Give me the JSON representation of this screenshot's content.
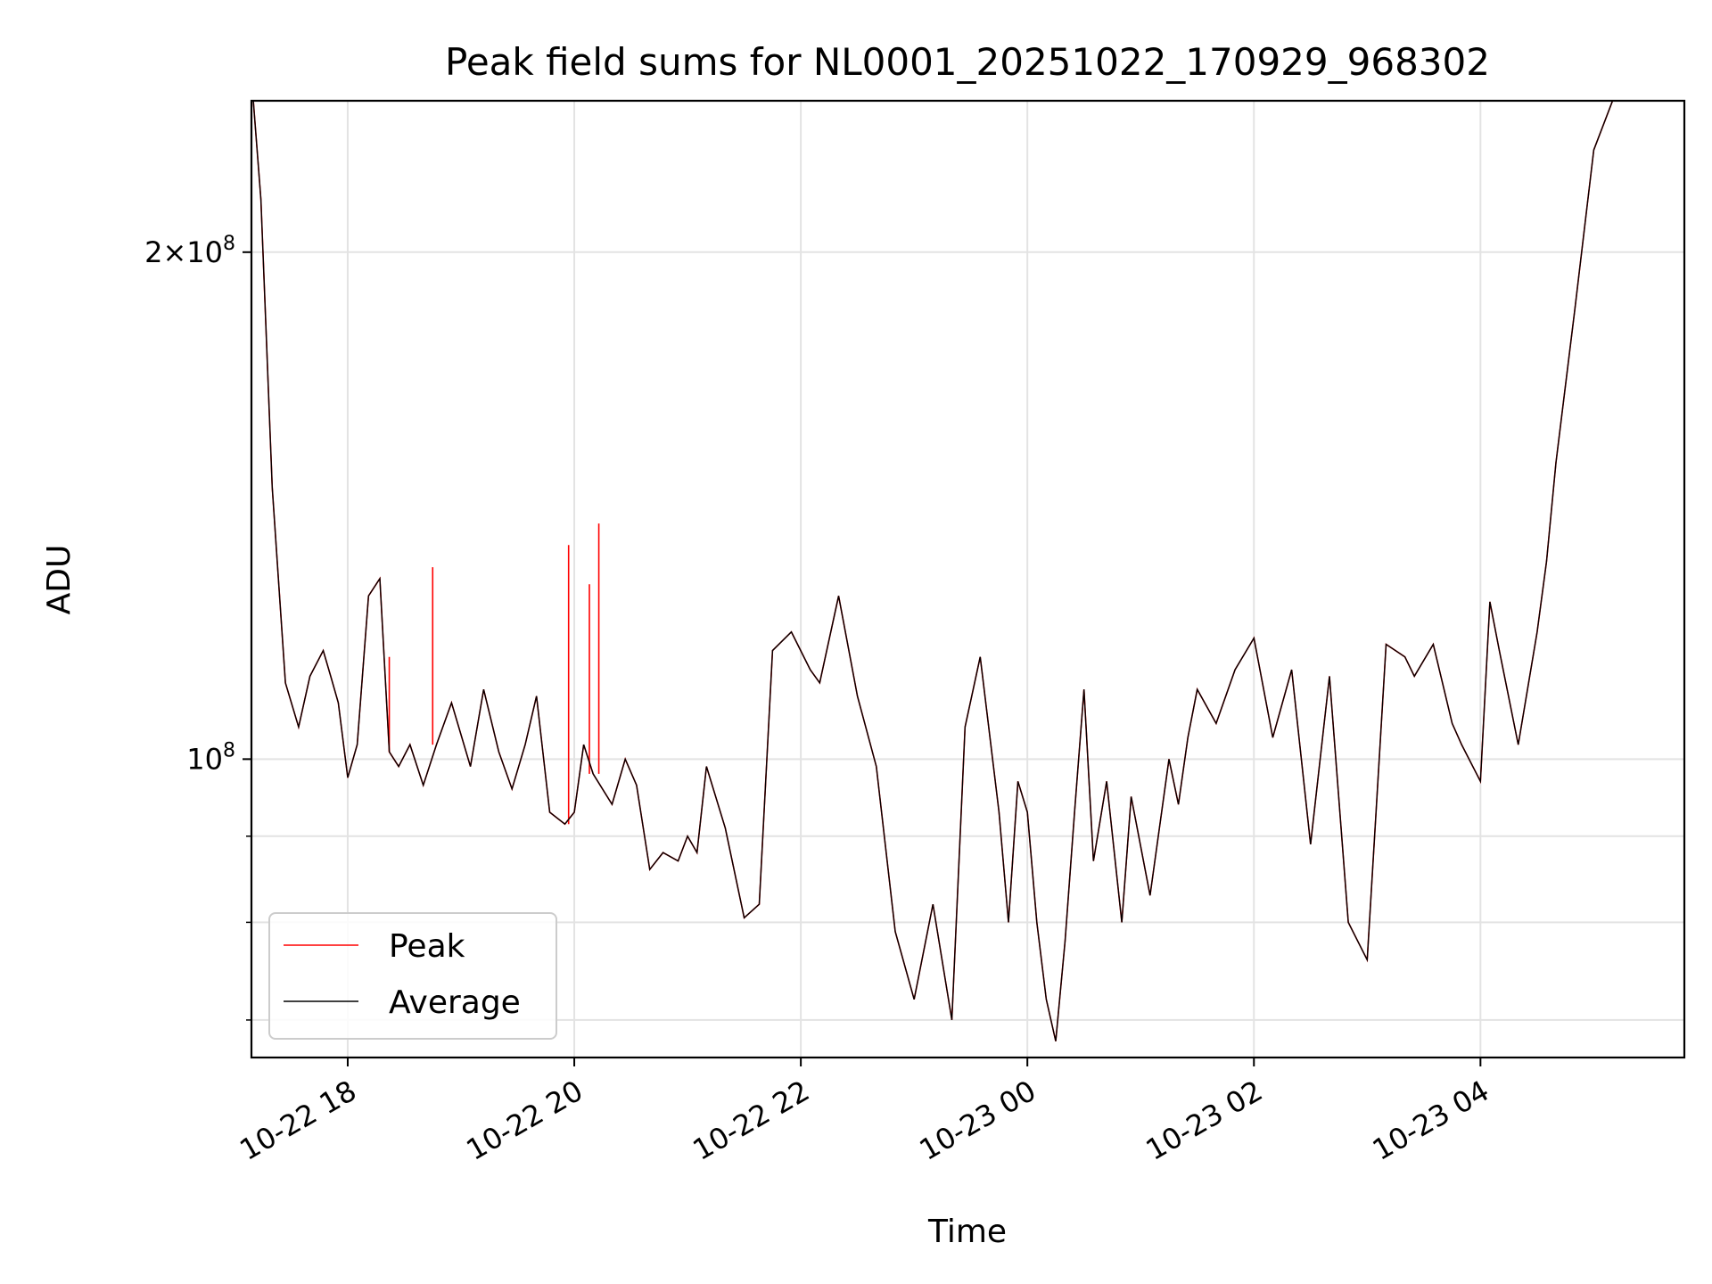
{
  "chart_data": {
    "type": "line",
    "title": "Peak field sums for NL0001_20251022_170929_968302",
    "xlabel": "Time",
    "ylabel": "ADU",
    "x_range": [
      "2025-10-22 17:09",
      "2025-10-23 05:48"
    ],
    "x_ticks": [
      "10-22 18",
      "10-22 20",
      "10-22 22",
      "10-23 00",
      "10-23 02",
      "10-23 04"
    ],
    "y_scale": "log",
    "ylim": [
      66500000,
      246000000
    ],
    "y_major_ticks": [
      {
        "value": 100000000,
        "label": "10^8"
      },
      {
        "value": 200000000,
        "label": "2×10^8"
      }
    ],
    "y_minor_ticks": [
      70000000,
      80000000,
      90000000
    ],
    "grid": true,
    "legend_position": "lower-left",
    "colors": {
      "peak": "#ff0000",
      "average": "#000000"
    },
    "series": [
      {
        "name": "Peak",
        "color": "#ff0000"
      },
      {
        "name": "Average",
        "color": "#000000"
      }
    ],
    "x": [
      "17:09",
      "17:10",
      "17:14",
      "17:20",
      "17:27",
      "17:34",
      "17:40",
      "17:47",
      "17:51",
      "17:55",
      "18:00",
      "18:05",
      "18:11",
      "18:17",
      "18:22",
      "18:27",
      "18:33",
      "18:40",
      "18:47",
      "18:55",
      "19:05",
      "19:12",
      "19:20",
      "19:27",
      "19:34",
      "19:40",
      "19:47",
      "19:55",
      "20:00",
      "20:05",
      "20:10",
      "20:20",
      "20:27",
      "20:33",
      "20:40",
      "20:47",
      "20:55",
      "21:00",
      "21:05",
      "21:10",
      "21:20",
      "21:30",
      "21:38",
      "21:45",
      "21:55",
      "22:05",
      "22:10",
      "22:20",
      "22:30",
      "22:40",
      "22:50",
      "23:00",
      "23:10",
      "23:20",
      "23:27",
      "23:35",
      "23:45",
      "23:50",
      "23:55",
      "00:00",
      "00:05",
      "00:10",
      "00:15",
      "00:20",
      "00:25",
      "00:30",
      "00:35",
      "00:42",
      "00:50",
      "00:55",
      "01:05",
      "01:15",
      "01:20",
      "01:25",
      "01:30",
      "01:40",
      "01:50",
      "02:00",
      "02:10",
      "02:20",
      "02:30",
      "02:40",
      "02:50",
      "03:00",
      "03:10",
      "03:20",
      "03:25",
      "03:35",
      "03:45",
      "03:50",
      "04:00",
      "04:05",
      "04:10",
      "04:20",
      "04:30",
      "04:35",
      "04:40",
      "04:50",
      "05:00",
      "05:10",
      "05:15",
      "05:20",
      "05:25",
      "05:30",
      "05:40",
      "05:48"
    ],
    "values_average": [
      246000000,
      246000000,
      215000000,
      145000000,
      111000000,
      104500000,
      112000000,
      116000000,
      112000000,
      108000000,
      97500000,
      102000000,
      125000000,
      128000000,
      101000000,
      99000000,
      102000000,
      96500000,
      102000000,
      108000000,
      99000000,
      110000000,
      101000000,
      96000000,
      102000000,
      109000000,
      93000000,
      91500000,
      93000000,
      102000000,
      98000000,
      94000000,
      100000000,
      96500000,
      86000000,
      88000000,
      87000000,
      90000000,
      88000000,
      99000000,
      91000000,
      80500000,
      82000000,
      116000000,
      119000000,
      113000000,
      111000000,
      125000000,
      109000000,
      99000000,
      79000000,
      72000000,
      82000000,
      70000000,
      104500000,
      115000000,
      93000000,
      80000000,
      97000000,
      93000000,
      80000000,
      72000000,
      68000000,
      78000000,
      93000000,
      110000000,
      87000000,
      97000000,
      80000000,
      95000000,
      83000000,
      100000000,
      94000000,
      103000000,
      110000000,
      105000000,
      113000000,
      118000000,
      103000000,
      113000000,
      89000000,
      112000000,
      80000000,
      76000000,
      117000000,
      115000000,
      112000000,
      117000000,
      105000000,
      102000000,
      97000000,
      124000000,
      116000000,
      102000000,
      119000000,
      131000000,
      150000000,
      185000000,
      230000000,
      246000000,
      246000000,
      246000000,
      246000000,
      246000000,
      246000000,
      246000000
    ],
    "values_peak": [
      246000000,
      246000000,
      215000000,
      145000000,
      111000000,
      104500000,
      112000000,
      116000000,
      112000000,
      108000000,
      97500000,
      102000000,
      125000000,
      128000000,
      101000000,
      99000000,
      102000000,
      96500000,
      102000000,
      108000000,
      99000000,
      110000000,
      101000000,
      96000000,
      102000000,
      109000000,
      93000000,
      91500000,
      93000000,
      102000000,
      98000000,
      94000000,
      100000000,
      96500000,
      86000000,
      88000000,
      87000000,
      90000000,
      88000000,
      99000000,
      91000000,
      80500000,
      82000000,
      116000000,
      119000000,
      113000000,
      111000000,
      125000000,
      109000000,
      99000000,
      79000000,
      72000000,
      82000000,
      70000000,
      104500000,
      115000000,
      93000000,
      80000000,
      97000000,
      93000000,
      80000000,
      72000000,
      68000000,
      78000000,
      93000000,
      110000000,
      87000000,
      97000000,
      80000000,
      95000000,
      83000000,
      100000000,
      94000000,
      103000000,
      110000000,
      105000000,
      113000000,
      118000000,
      103000000,
      113000000,
      89000000,
      112000000,
      80000000,
      76000000,
      117000000,
      115000000,
      112000000,
      117000000,
      105000000,
      102000000,
      97000000,
      124000000,
      116000000,
      102000000,
      119000000,
      131000000,
      150000000,
      185000000,
      230000000,
      246000000,
      246000000,
      246000000,
      246000000,
      246000000,
      246000000,
      246000000
    ],
    "peak_spikes": [
      {
        "x": "18:22",
        "value": 115000000
      },
      {
        "x": "18:45",
        "value": 130000000
      },
      {
        "x": "19:57",
        "value": 134000000
      },
      {
        "x": "20:08",
        "value": 127000000
      },
      {
        "x": "20:13",
        "value": 138000000
      }
    ]
  }
}
